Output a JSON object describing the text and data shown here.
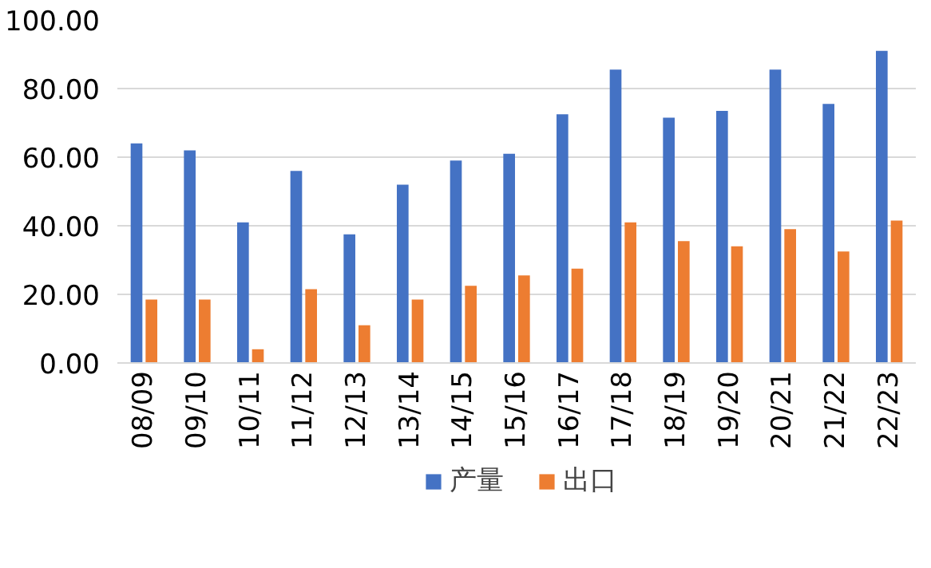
{
  "chart_data": {
    "type": "bar",
    "categories": [
      "08/09",
      "09/10",
      "10/11",
      "11/12",
      "12/13",
      "13/14",
      "14/15",
      "15/16",
      "16/17",
      "17/18",
      "18/19",
      "19/20",
      "20/21",
      "21/22",
      "22/23"
    ],
    "series": [
      {
        "name": "产量",
        "color": "#4472c4",
        "values": [
          64,
          62,
          41,
          56,
          37.5,
          52,
          59,
          61,
          72.5,
          85.5,
          71.5,
          73.5,
          85.5,
          75.5,
          91
        ]
      },
      {
        "name": "出口",
        "color": "#ed7d31",
        "values": [
          18.5,
          18.5,
          4,
          21.5,
          11,
          18.5,
          22.5,
          25.5,
          27.5,
          41,
          35.5,
          34,
          39,
          32.5,
          41.5
        ]
      }
    ],
    "ylim": [
      0,
      100
    ],
    "yticks": [
      {
        "value": 0,
        "label": "0.00"
      },
      {
        "value": 20,
        "label": "20.00"
      },
      {
        "value": 40,
        "label": "40.00"
      },
      {
        "value": 60,
        "label": "60.00"
      },
      {
        "value": 80,
        "label": "80.00"
      },
      {
        "value": 100,
        "label": "100.00"
      }
    ],
    "grid": "y",
    "legend": "bottom"
  }
}
